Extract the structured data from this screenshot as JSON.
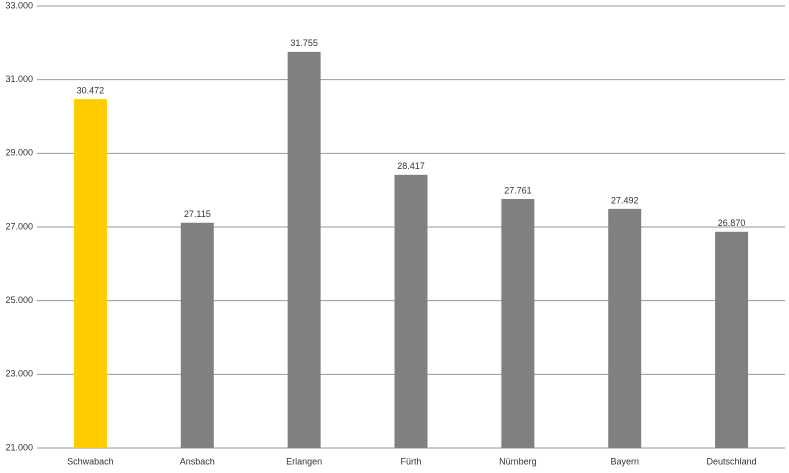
{
  "chart_data": {
    "type": "bar",
    "categories": [
      "Schwabach",
      "Ansbach",
      "Erlangen",
      "Fürth",
      "Nürnberg",
      "Bayern",
      "Deutschland"
    ],
    "values": [
      30472,
      27115,
      31755,
      28417,
      27761,
      27492,
      26870
    ],
    "value_labels": [
      "30.472",
      "27.115",
      "31.755",
      "28.417",
      "27.761",
      "27.492",
      "26.870"
    ],
    "colors": [
      "#ffcc00",
      "#808080",
      "#808080",
      "#808080",
      "#808080",
      "#808080",
      "#808080"
    ],
    "ylim": [
      21000,
      33000
    ],
    "yticks": [
      {
        "value": 21000,
        "label": "21.000"
      },
      {
        "value": 23000,
        "label": "23.000"
      },
      {
        "value": 25000,
        "label": "25.000"
      },
      {
        "value": 27000,
        "label": "27.000"
      },
      {
        "value": 29000,
        "label": "29.000"
      },
      {
        "value": 31000,
        "label": "31.000"
      },
      {
        "value": 33000,
        "label": "33.000"
      }
    ],
    "grid": true
  }
}
